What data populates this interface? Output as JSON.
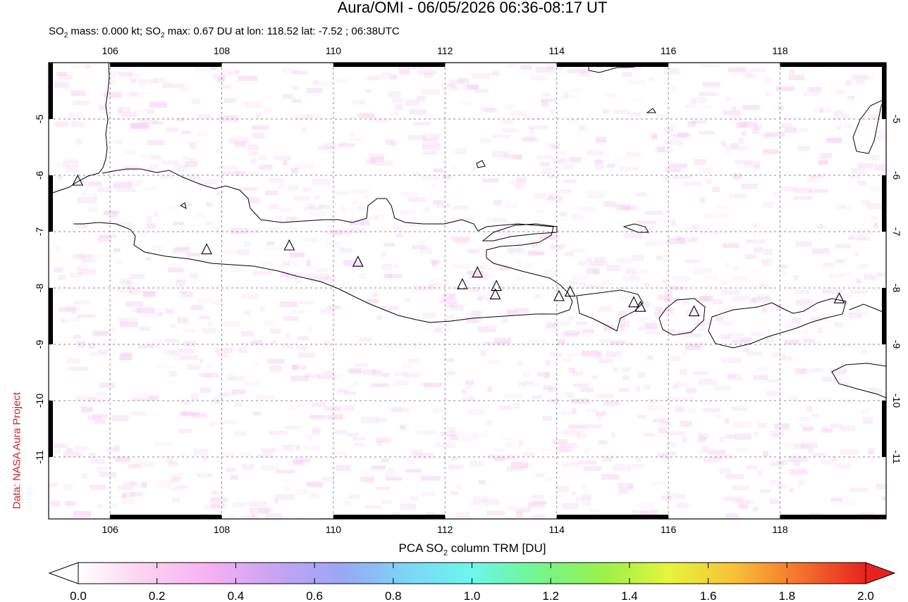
{
  "header": {
    "title": "Aura/OMI - 06/05/2026 06:36-08:17 UT",
    "subtitle_prefix": "SO",
    "subtitle_sub1": "2",
    "subtitle_mid": " mass: 0.000 kt; SO",
    "subtitle_sub2": "2",
    "subtitle_suffix": " max: 0.67 DU at lon: 118.52 lat: -7.52 ; 06:38UTC"
  },
  "credit": "Data: NASA Aura Project",
  "map": {
    "lon_range": [
      104.9,
      119.9
    ],
    "lat_range": [
      -12.1,
      -4.0
    ],
    "x_ticks": [
      106,
      108,
      110,
      112,
      114,
      116,
      118
    ],
    "y_ticks": [
      -5,
      -6,
      -7,
      -8,
      -9,
      -10,
      -11
    ],
    "x_tick_labels": [
      "106",
      "108",
      "110",
      "112",
      "114",
      "116",
      "118"
    ],
    "y_tick_labels": [
      "-5",
      "-6",
      "-7",
      "-8",
      "-9",
      "-10",
      "-11"
    ],
    "grid": true,
    "volcanoes": [
      {
        "lon": 105.42,
        "lat": -6.1
      },
      {
        "lon": 107.73,
        "lat": -7.32
      },
      {
        "lon": 109.21,
        "lat": -7.25
      },
      {
        "lon": 110.44,
        "lat": -7.54
      },
      {
        "lon": 112.31,
        "lat": -7.94
      },
      {
        "lon": 112.58,
        "lat": -7.73
      },
      {
        "lon": 112.92,
        "lat": -7.97
      },
      {
        "lon": 112.9,
        "lat": -8.12
      },
      {
        "lon": 114.04,
        "lat": -8.15
      },
      {
        "lon": 114.24,
        "lat": -8.07
      },
      {
        "lon": 115.38,
        "lat": -8.26
      },
      {
        "lon": 115.5,
        "lat": -8.34
      },
      {
        "lon": 116.46,
        "lat": -8.42
      },
      {
        "lon": 119.06,
        "lat": -8.19
      }
    ]
  },
  "colorbar": {
    "title_prefix": "PCA SO",
    "title_sub": "2",
    "title_suffix": " column TRM [DU]",
    "range": [
      0.0,
      2.0
    ],
    "tick_labels": [
      "0.0",
      "0.2",
      "0.4",
      "0.6",
      "0.8",
      "1.0",
      "1.2",
      "1.4",
      "1.6",
      "1.8",
      "2.0"
    ],
    "colors": [
      "#ffffff",
      "#fbd3ef",
      "#f7b0f5",
      "#c8a4f4",
      "#9ba6f6",
      "#7bd6f7",
      "#6cf7ec",
      "#72f68d",
      "#9af14b",
      "#e6f53a",
      "#f8c137",
      "#f4722d",
      "#e8231f"
    ]
  }
}
